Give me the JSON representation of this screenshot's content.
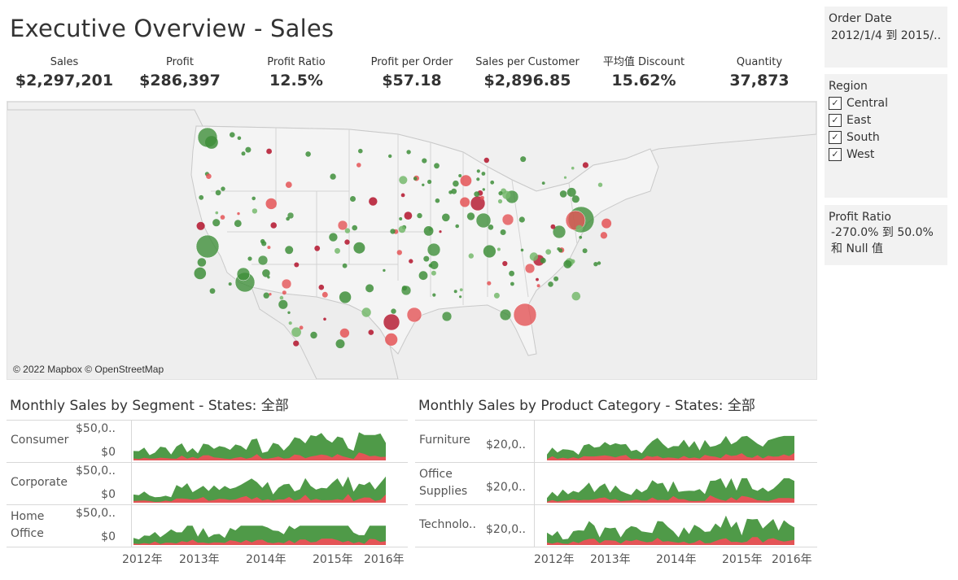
{
  "dashboard": {
    "title": "Executive Overview - Sales"
  },
  "kpis": [
    {
      "label": "Sales",
      "value": "$2,297,201"
    },
    {
      "label": "Profit",
      "value": "$286,397"
    },
    {
      "label": "Profit Ratio",
      "value": "12.5%"
    },
    {
      "label": "Profit per Order",
      "value": "$57.18"
    },
    {
      "label": "Sales per Customer",
      "value": "$2,896.85"
    },
    {
      "label": "平均值 Discount",
      "value": "15.62%"
    },
    {
      "label": "Quantity",
      "value": "37,873"
    }
  ],
  "map": {
    "attribution": "© 2022 Mapbox © OpenStreetMap"
  },
  "filters": {
    "order_date": {
      "title": "Order Date",
      "value": "2012/1/4 到 2015/.."
    },
    "region": {
      "title": "Region",
      "items": [
        "Central",
        "East",
        "South",
        "West"
      ],
      "check": "✓"
    },
    "profit_ratio": {
      "title": "Profit Ratio",
      "line1": "-270.0% 到 50.0%",
      "line2": "和 Null 值"
    }
  },
  "segment_chart": {
    "title": "Monthly Sales by Segment - States: 全部",
    "rows": [
      {
        "label_lines": [
          "Consumer"
        ],
        "top_tick": "$50,0..",
        "bottom_tick": "$0"
      },
      {
        "label_lines": [
          "Corporate"
        ],
        "top_tick": "$50,0..",
        "bottom_tick": "$0"
      },
      {
        "label_lines": [
          "Home",
          "Office"
        ],
        "top_tick": "$50,0..",
        "bottom_tick": "$0"
      }
    ]
  },
  "category_chart": {
    "title": "Monthly Sales by Product Category - States: 全部",
    "rows": [
      {
        "label_lines": [
          "Furniture"
        ],
        "tick": "$20,0.."
      },
      {
        "label_lines": [
          "Office",
          "Supplies"
        ],
        "tick": "$20,0.."
      },
      {
        "label_lines": [
          "Technolo.."
        ],
        "tick": "$20,0.."
      }
    ]
  },
  "years": [
    "2012年",
    "2013年",
    "2014年",
    "2015年",
    "2016年"
  ],
  "colors": {
    "positive": "#3e8e3a",
    "positive_light": "#76b86c",
    "negative": "#e45456",
    "negative_dark": "#b3132b",
    "panel_bg": "#f2f2f2"
  }
}
